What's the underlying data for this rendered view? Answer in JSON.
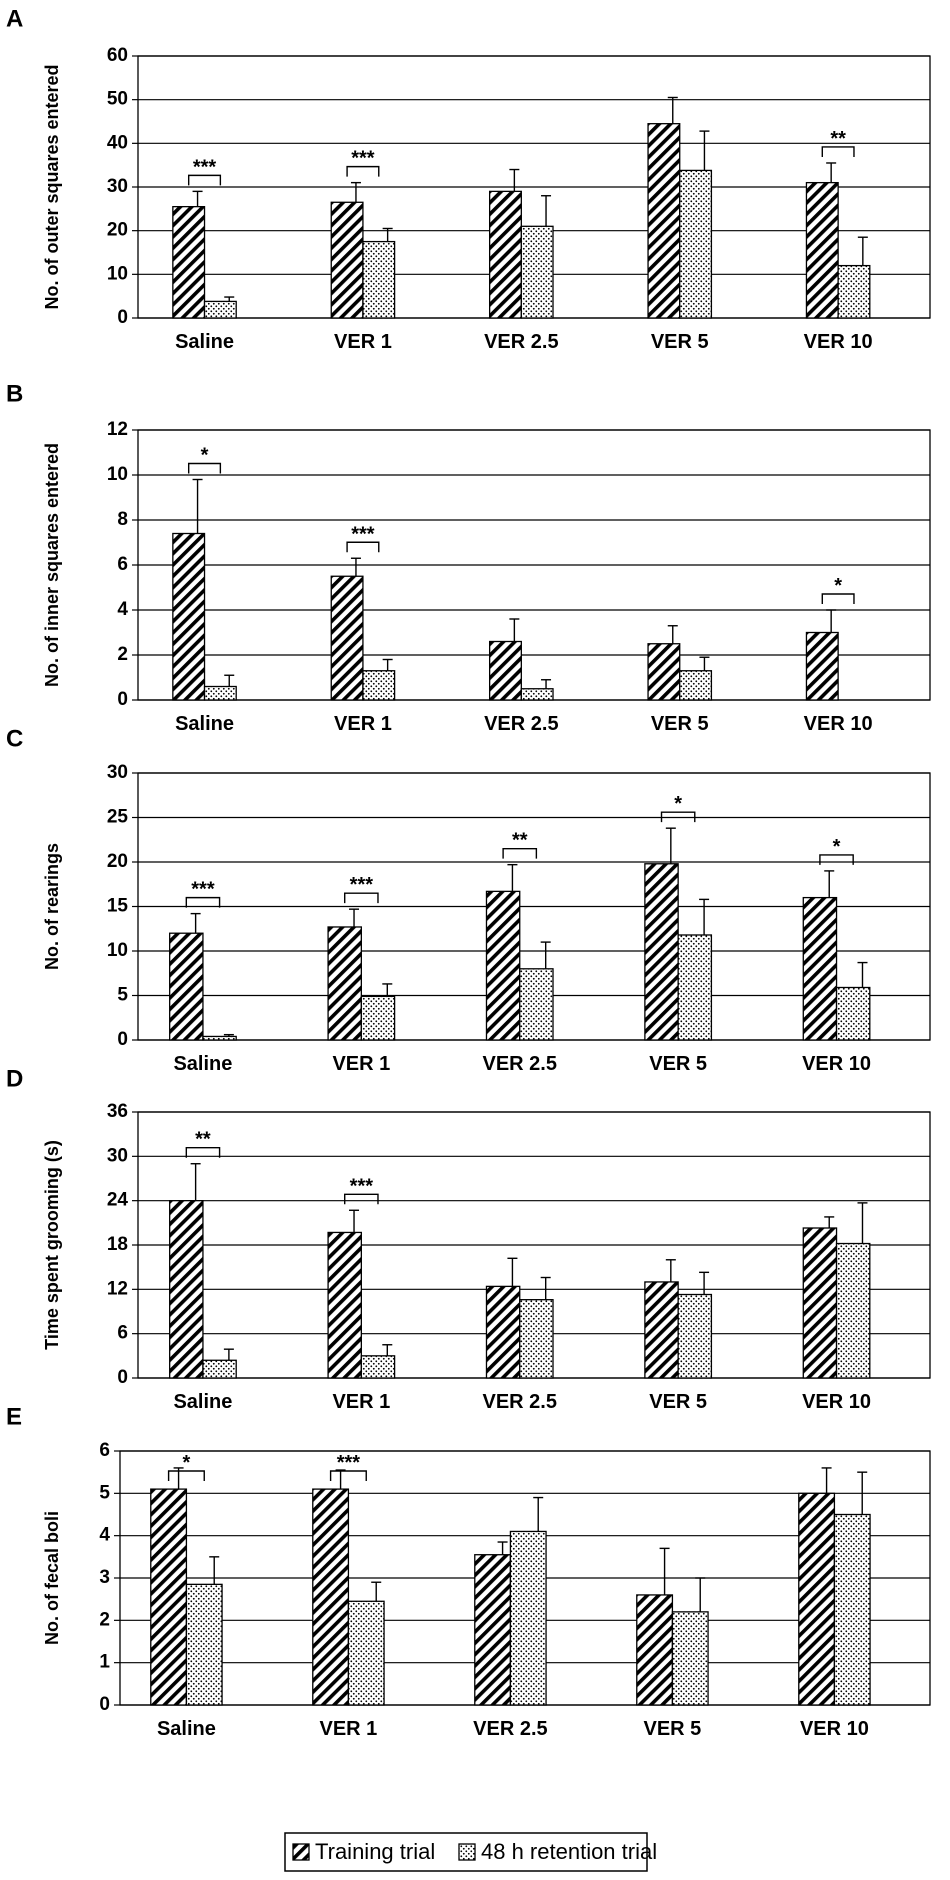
{
  "figure": {
    "legend": {
      "entries": [
        {
          "label": "Training trial",
          "pattern": "hatch"
        },
        {
          "label": "48 h retention trial",
          "pattern": "dots"
        }
      ]
    }
  },
  "chart_data": [
    {
      "panel": "A",
      "type": "bar",
      "ylabel": "No. of outer squares entered",
      "ylim": [
        0,
        60
      ],
      "yticks": [
        0,
        10,
        20,
        30,
        40,
        50,
        60
      ],
      "categories": [
        "Saline",
        "VER 1",
        "VER 2.5",
        "VER 5",
        "VER 10"
      ],
      "series": [
        {
          "name": "Training trial",
          "values": [
            25.5,
            26.5,
            29,
            44.5,
            31
          ],
          "errors": [
            3.5,
            4.5,
            5,
            6,
            4.5
          ]
        },
        {
          "name": "48 h retention trial",
          "values": [
            3.8,
            17.5,
            21,
            33.8,
            12
          ],
          "errors": [
            1,
            3,
            7,
            9,
            6.5
          ]
        }
      ],
      "significance": [
        {
          "category": "Saline",
          "label": "***"
        },
        {
          "category": "VER 1",
          "label": "***"
        },
        {
          "category": "VER 10",
          "label": "**"
        }
      ]
    },
    {
      "panel": "B",
      "type": "bar",
      "ylabel": "No. of inner squares entered",
      "ylim": [
        0,
        12
      ],
      "yticks": [
        0,
        2,
        4,
        6,
        8,
        10,
        12
      ],
      "categories": [
        "Saline",
        "VER 1",
        "VER 2.5",
        "VER 5",
        "VER 10"
      ],
      "series": [
        {
          "name": "Training trial",
          "values": [
            7.4,
            5.5,
            2.6,
            2.5,
            3
          ],
          "errors": [
            2.4,
            0.8,
            1,
            0.8,
            1
          ]
        },
        {
          "name": "48 h retention trial",
          "values": [
            0.6,
            1.3,
            0.5,
            1.3,
            0
          ],
          "errors": [
            0.5,
            0.5,
            0.4,
            0.6,
            0
          ]
        }
      ],
      "significance": [
        {
          "category": "Saline",
          "label": "*"
        },
        {
          "category": "VER 1",
          "label": "***"
        },
        {
          "category": "VER 10",
          "label": "*"
        }
      ]
    },
    {
      "panel": "C",
      "type": "bar",
      "ylabel": "No. of rearings",
      "ylim": [
        0,
        30
      ],
      "yticks": [
        0,
        5,
        10,
        15,
        20,
        25,
        30
      ],
      "categories": [
        "Saline",
        "VER 1",
        "VER 2.5",
        "VER 5",
        "VER 10"
      ],
      "series": [
        {
          "name": "Training trial",
          "values": [
            12,
            12.7,
            16.7,
            19.8,
            16
          ],
          "errors": [
            2.2,
            2,
            3,
            4,
            3
          ]
        },
        {
          "name": "48 h retention trial",
          "values": [
            0.4,
            4.9,
            8,
            11.8,
            5.9
          ],
          "errors": [
            0.2,
            1.4,
            3,
            4,
            2.8
          ]
        }
      ],
      "significance": [
        {
          "category": "Saline",
          "label": "***"
        },
        {
          "category": "VER 1",
          "label": "***"
        },
        {
          "category": "VER 2.5",
          "label": "**"
        },
        {
          "category": "VER 5",
          "label": "*"
        },
        {
          "category": "VER 10",
          "label": "*"
        }
      ]
    },
    {
      "panel": "D",
      "type": "bar",
      "ylabel": "Time spent grooming (s)",
      "ylim": [
        0,
        36
      ],
      "yticks": [
        0,
        6,
        12,
        18,
        24,
        30,
        36
      ],
      "categories": [
        "Saline",
        "VER 1",
        "VER 2.5",
        "VER 5",
        "VER 10"
      ],
      "series": [
        {
          "name": "Training trial",
          "values": [
            24,
            19.7,
            12.4,
            13,
            20.3
          ],
          "errors": [
            5,
            3,
            3.8,
            3,
            1.5
          ]
        },
        {
          "name": "48 h retention trial",
          "values": [
            2.4,
            3,
            10.6,
            11.3,
            18.2
          ],
          "errors": [
            1.5,
            1.5,
            3,
            3,
            5.5
          ]
        }
      ],
      "significance": [
        {
          "category": "Saline",
          "label": "**"
        },
        {
          "category": "VER 1",
          "label": "***"
        }
      ]
    },
    {
      "panel": "E",
      "type": "bar",
      "ylabel": "No. of fecal boli",
      "ylim": [
        0,
        6
      ],
      "yticks": [
        0,
        1,
        2,
        3,
        4,
        5,
        6
      ],
      "categories": [
        "Saline",
        "VER 1",
        "VER 2.5",
        "VER 5",
        "VER 10"
      ],
      "series": [
        {
          "name": "Training trial",
          "values": [
            5.1,
            5.1,
            3.55,
            2.6,
            5
          ],
          "errors": [
            0.5,
            0.45,
            0.3,
            1.1,
            0.6
          ]
        },
        {
          "name": "48 h retention trial",
          "values": [
            2.85,
            2.45,
            4.1,
            2.2,
            4.5
          ],
          "errors": [
            0.65,
            0.45,
            0.8,
            0.8,
            1
          ]
        }
      ],
      "significance": [
        {
          "category": "Saline",
          "label": "*"
        },
        {
          "category": "VER 1",
          "label": "***"
        }
      ]
    }
  ]
}
